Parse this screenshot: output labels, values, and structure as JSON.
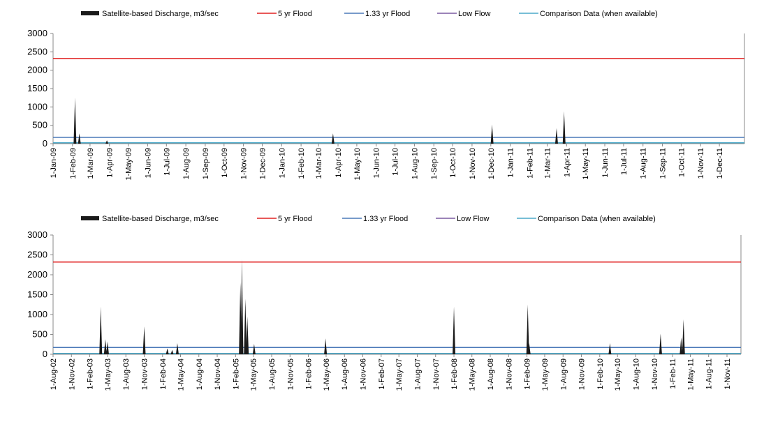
{
  "colors": {
    "discharge": "#1a1a1a",
    "flood5": "#e02020",
    "flood133": "#4a78b8",
    "lowflow": "#7a5aa0",
    "comparison": "#4aa8c8",
    "axis": "#888888"
  },
  "chart_data": [
    {
      "type": "area",
      "legend": [
        {
          "key": "discharge",
          "label": "Satellite-based Discharge, m3/sec"
        },
        {
          "key": "flood5",
          "label": "5 yr Flood"
        },
        {
          "key": "flood133",
          "label": "1.33 yr Flood"
        },
        {
          "key": "lowflow",
          "label": "Low Flow"
        },
        {
          "key": "comparison",
          "label": "Comparison Data (when available)"
        }
      ],
      "legend_position": "top",
      "ylim": [
        0,
        3000
      ],
      "yticks": [
        0,
        500,
        1000,
        1500,
        2000,
        2500,
        3000
      ],
      "xlim": [
        "2009-01-01",
        "2012-01-10"
      ],
      "xtick_labels": [
        "1-Jan-09",
        "1-Feb-09",
        "1-Mar-09",
        "1-Apr-09",
        "1-May-09",
        "1-Jun-09",
        "1-Jul-09",
        "1-Aug-09",
        "1-Sep-09",
        "1-Oct-09",
        "1-Nov-09",
        "1-Dec-09",
        "1-Jan-10",
        "1-Feb-10",
        "1-Mar-10",
        "1-Apr-10",
        "1-May-10",
        "1-Jun-10",
        "1-Jul-10",
        "1-Aug-10",
        "1-Sep-10",
        "1-Oct-10",
        "1-Nov-10",
        "1-Dec-10",
        "1-Jan-11",
        "1-Feb-11",
        "1-Mar-11",
        "1-Apr-11",
        "1-May-11",
        "1-Jun-11",
        "1-Jul-11",
        "1-Aug-11",
        "1-Sep-11",
        "1-Oct-11",
        "1-Nov-11",
        "1-Dec-11"
      ],
      "xtick_dates": [
        "2009-01-01",
        "2009-02-01",
        "2009-03-01",
        "2009-04-01",
        "2009-05-01",
        "2009-06-01",
        "2009-07-01",
        "2009-08-01",
        "2009-09-01",
        "2009-10-01",
        "2009-11-01",
        "2009-12-01",
        "2010-01-01",
        "2010-02-01",
        "2010-03-01",
        "2010-04-01",
        "2010-05-01",
        "2010-06-01",
        "2010-07-01",
        "2010-08-01",
        "2010-09-01",
        "2010-10-01",
        "2010-11-01",
        "2010-12-01",
        "2011-01-01",
        "2011-02-01",
        "2011-03-01",
        "2011-04-01",
        "2011-05-01",
        "2011-06-01",
        "2011-07-01",
        "2011-08-01",
        "2011-09-01",
        "2011-10-01",
        "2011-11-01",
        "2011-12-01"
      ],
      "reference_lines": {
        "flood5": 2320,
        "flood133": 170,
        "lowflow": 0,
        "comparison": 5
      },
      "spikes": [
        {
          "date": "2009-02-05",
          "value": 1250
        },
        {
          "date": "2009-02-12",
          "value": 280
        },
        {
          "date": "2009-03-28",
          "value": 90
        },
        {
          "date": "2010-03-24",
          "value": 280
        },
        {
          "date": "2010-12-03",
          "value": 520
        },
        {
          "date": "2011-03-16",
          "value": 420
        },
        {
          "date": "2011-03-28",
          "value": 880
        }
      ]
    },
    {
      "type": "area",
      "legend": [
        {
          "key": "discharge",
          "label": "Satellite-based Discharge, m3/sec"
        },
        {
          "key": "flood5",
          "label": "5 yr Flood"
        },
        {
          "key": "flood133",
          "label": "1.33 yr Flood"
        },
        {
          "key": "lowflow",
          "label": "Low Flow"
        },
        {
          "key": "comparison",
          "label": "Comparison Data (when available)"
        }
      ],
      "legend_position": "top",
      "ylim": [
        0,
        3000
      ],
      "yticks": [
        0,
        500,
        1000,
        1500,
        2000,
        2500,
        3000
      ],
      "xlim": [
        "2002-08-01",
        "2012-01-10"
      ],
      "xtick_labels": [
        "1-Aug-02",
        "1-Nov-02",
        "1-Feb-03",
        "1-May-03",
        "1-Aug-03",
        "1-Nov-03",
        "1-Feb-04",
        "1-May-04",
        "1-Aug-04",
        "1-Nov-04",
        "1-Feb-05",
        "1-May-05",
        "1-Aug-05",
        "1-Nov-05",
        "1-Feb-06",
        "1-May-06",
        "1-Aug-06",
        "1-Nov-06",
        "1-Feb-07",
        "1-May-07",
        "1-Aug-07",
        "1-Nov-07",
        "1-Feb-08",
        "1-May-08",
        "1-Aug-08",
        "1-Nov-08",
        "1-Feb-09",
        "1-May-09",
        "1-Aug-09",
        "1-Nov-09",
        "1-Feb-10",
        "1-May-10",
        "1-Aug-10",
        "1-Nov-10",
        "1-Feb-11",
        "1-May-11",
        "1-Aug-11",
        "1-Nov-11"
      ],
      "xtick_dates": [
        "2002-08-01",
        "2002-11-01",
        "2003-02-01",
        "2003-05-01",
        "2003-08-01",
        "2003-11-01",
        "2004-02-01",
        "2004-05-01",
        "2004-08-01",
        "2004-11-01",
        "2005-02-01",
        "2005-05-01",
        "2005-08-01",
        "2005-11-01",
        "2006-02-01",
        "2006-05-01",
        "2006-08-01",
        "2006-11-01",
        "2007-02-01",
        "2007-05-01",
        "2007-08-01",
        "2007-11-01",
        "2008-02-01",
        "2008-05-01",
        "2008-08-01",
        "2008-11-01",
        "2009-02-01",
        "2009-05-01",
        "2009-08-01",
        "2009-11-01",
        "2010-02-01",
        "2010-05-01",
        "2010-08-01",
        "2010-11-01",
        "2011-02-01",
        "2011-05-01",
        "2011-08-01",
        "2011-11-01"
      ],
      "reference_lines": {
        "flood5": 2320,
        "flood133": 170,
        "lowflow": 0,
        "comparison": 5
      },
      "spikes": [
        {
          "date": "2003-03-28",
          "value": 1200
        },
        {
          "date": "2003-04-20",
          "value": 380
        },
        {
          "date": "2003-05-01",
          "value": 320
        },
        {
          "date": "2003-11-01",
          "value": 700
        },
        {
          "date": "2004-02-25",
          "value": 150
        },
        {
          "date": "2004-03-20",
          "value": 110
        },
        {
          "date": "2004-04-15",
          "value": 280
        },
        {
          "date": "2005-02-25",
          "value": 1800
        },
        {
          "date": "2005-03-05",
          "value": 2380
        },
        {
          "date": "2005-03-22",
          "value": 1400
        },
        {
          "date": "2005-04-01",
          "value": 950
        },
        {
          "date": "2005-05-05",
          "value": 260
        },
        {
          "date": "2006-04-28",
          "value": 400
        },
        {
          "date": "2008-02-01",
          "value": 1200
        },
        {
          "date": "2009-02-05",
          "value": 1250
        },
        {
          "date": "2009-02-12",
          "value": 280
        },
        {
          "date": "2010-03-24",
          "value": 280
        },
        {
          "date": "2010-12-03",
          "value": 520
        },
        {
          "date": "2011-03-16",
          "value": 420
        },
        {
          "date": "2011-03-28",
          "value": 880
        }
      ]
    }
  ]
}
